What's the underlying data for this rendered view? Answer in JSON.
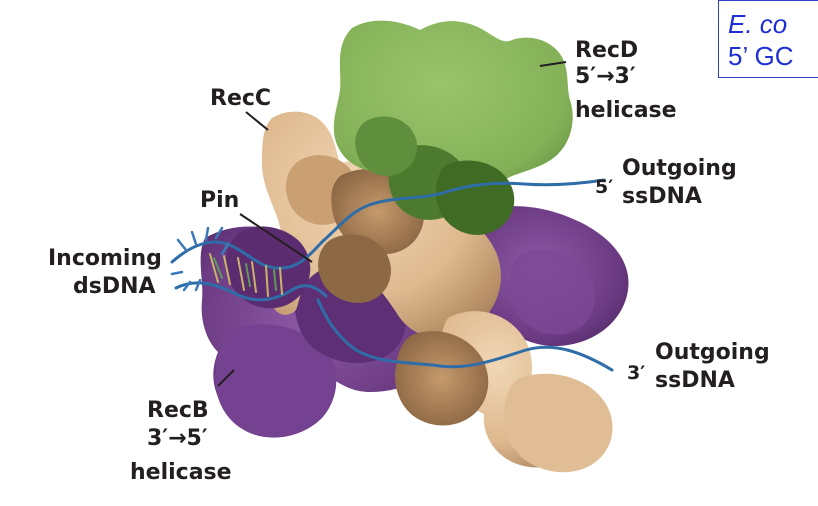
{
  "caption": {
    "line1": "E. co",
    "line2": "5’ GC"
  },
  "labels": {
    "recd_name": "RecD",
    "recd_dir": "5′→3′",
    "recd_type": "helicase",
    "recc": "RecC",
    "pin": "Pin",
    "incoming_1": "Incoming",
    "incoming_2": "dsDNA",
    "recb_name": "RecB",
    "recb_dir": "3′→5′",
    "recb_type": "helicase",
    "out5_prime": "5′",
    "out5_1": "Outgoing",
    "out5_2": "ssDNA",
    "out3_prime": "3′",
    "out3_1": "Outgoing",
    "out3_2": "ssDNA"
  },
  "colors": {
    "recd": "#88b35c",
    "recd_dark": "#3f6b25",
    "recc": "#e7c59f",
    "recc_dark": "#9a7452",
    "recb": "#6b3a82",
    "recb_light": "#8a55a0",
    "dna": "#2f6da8",
    "caption": "#1f2fd6"
  }
}
